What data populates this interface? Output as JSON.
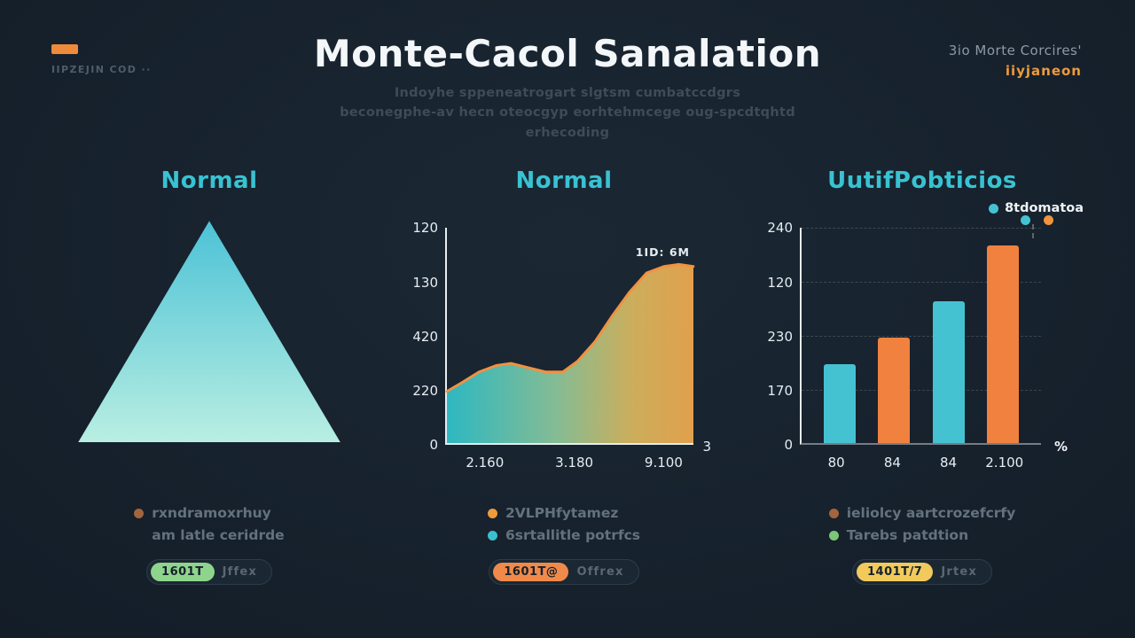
{
  "header": {
    "logo_label": "IIPZEJIN COD ··",
    "title": "Monte-Cacol Sanalation",
    "subtitle": [
      "Indoyhe sppeneatrogart slgtsm cumbatccdgrs",
      "beconegphe-av hecn oteocgyp eorhtehmcege oug-spcdtqhtd",
      "erhecoding"
    ],
    "right_top": "3io Morte Corcires'",
    "right_bottom": "iiyjaneon"
  },
  "panels": {
    "left": {
      "heading": "Normal",
      "legend": [
        {
          "label": "rxndramoxrhuy",
          "color": "#a2653e"
        },
        {
          "label": "am latle ceridrde",
          "color": ""
        }
      ],
      "pill": {
        "badge": "1601T",
        "badge_color": "#8fd48d",
        "text": "Jffex"
      }
    },
    "middle": {
      "heading": "Normal",
      "legend": [
        {
          "label": "2VLPHfytamez",
          "color": "#f09a3e"
        },
        {
          "label": "6srtallitle potrfcs",
          "color": "#3bbfce"
        }
      ],
      "pill": {
        "badge": "1601T@",
        "badge_color": "#f08a4b",
        "text": "Offrex"
      }
    },
    "right": {
      "heading": "UutifPobticios",
      "legend": [
        {
          "label": "ieliolcy aartcrozefcrfy",
          "color": "#a2653e"
        },
        {
          "label": "Tarebs patdtion",
          "color": "#7cc676"
        }
      ],
      "pill": {
        "badge": "1401T/7",
        "badge_color": "#f2ca5c",
        "text": "Jrtex"
      }
    }
  },
  "chart_data": [
    {
      "type": "area",
      "panel": "left",
      "title": "Normal",
      "note": "stylized triangular distribution glyph, no axes",
      "x": [
        0,
        0.5,
        1
      ],
      "values": [
        0,
        1,
        0
      ],
      "gradient": [
        "#4cc2d6",
        "#b9eee2"
      ]
    },
    {
      "type": "area",
      "panel": "middle",
      "title": "Normal",
      "y_ticks_top_to_bottom": [
        "120",
        "130",
        "420",
        "220",
        "0"
      ],
      "x_ticks": [
        "2.160",
        "3.180",
        "9.100"
      ],
      "x_tick_pos": [
        0.16,
        0.52,
        0.88
      ],
      "axis_end_label": "3",
      "annotation": "1ID: 6M",
      "points": [
        [
          0,
          0.24
        ],
        [
          0.06,
          0.28
        ],
        [
          0.13,
          0.33
        ],
        [
          0.2,
          0.36
        ],
        [
          0.26,
          0.37
        ],
        [
          0.33,
          0.35
        ],
        [
          0.4,
          0.33
        ],
        [
          0.47,
          0.33
        ],
        [
          0.53,
          0.38
        ],
        [
          0.6,
          0.47
        ],
        [
          0.67,
          0.59
        ],
        [
          0.74,
          0.7
        ],
        [
          0.81,
          0.79
        ],
        [
          0.88,
          0.82
        ],
        [
          0.94,
          0.83
        ],
        [
          1,
          0.82
        ]
      ],
      "fill_gradient": [
        "#2fc3cc",
        "#8ec79b",
        "#d9b85f",
        "#f0a94f"
      ],
      "line_color": "#f29140",
      "grid": false
    },
    {
      "type": "bar",
      "panel": "right",
      "title": "UutifPobticios",
      "categories": [
        "80",
        "84",
        "84",
        "2.100"
      ],
      "values": [
        0.37,
        0.49,
        0.66,
        0.92
      ],
      "values_note": "bar heights as fraction of axis height (tick labels are decorative)",
      "y_ticks_top_to_bottom": [
        "240",
        "120",
        "230",
        "170",
        "0"
      ],
      "bar_colors": [
        "#45c2d2",
        "#f0813f",
        "#45c2d2",
        "#f0813f"
      ],
      "legend_label": "8tdomatoa",
      "legend_dot_colors": [
        "#45c2d2",
        "#f0943f"
      ],
      "unit_label": "%",
      "grid": true
    }
  ]
}
